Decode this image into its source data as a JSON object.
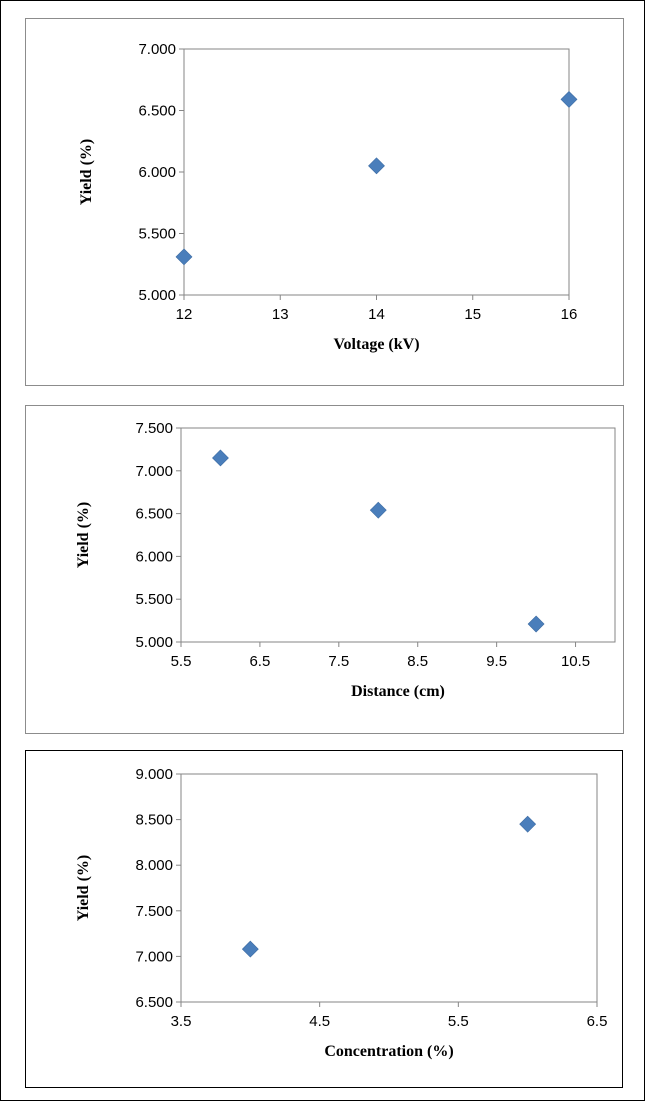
{
  "chart_data": [
    {
      "type": "scatter",
      "title": "",
      "xlabel": "Voltage (kV)",
      "ylabel": "Yield (%)",
      "xlim": [
        12,
        16
      ],
      "ylim": [
        5.0,
        7.0
      ],
      "x_ticks": [
        "12",
        "13",
        "14",
        "15",
        "16"
      ],
      "y_ticks": [
        "5.000",
        "5.500",
        "6.000",
        "6.500",
        "7.000"
      ],
      "grid": false,
      "marker": "diamond",
      "color": "#4a7ebb",
      "points": [
        {
          "x": 12,
          "y": 5.31
        },
        {
          "x": 14,
          "y": 6.05
        },
        {
          "x": 16,
          "y": 6.59
        }
      ]
    },
    {
      "type": "scatter",
      "title": "",
      "xlabel": "Distance (cm)",
      "ylabel": "Yield (%)",
      "xlim": [
        5.5,
        11.0
      ],
      "ylim": [
        5.0,
        7.5
      ],
      "x_ticks": [
        "5.5",
        "6.5",
        "7.5",
        "8.5",
        "9.5",
        "10.5"
      ],
      "y_ticks": [
        "5.000",
        "5.500",
        "6.000",
        "6.500",
        "7.000",
        "7.500"
      ],
      "grid": false,
      "marker": "diamond",
      "color": "#4a7ebb",
      "points": [
        {
          "x": 6,
          "y": 7.15
        },
        {
          "x": 8,
          "y": 6.54
        },
        {
          "x": 10,
          "y": 5.21
        }
      ]
    },
    {
      "type": "scatter",
      "title": "",
      "xlabel": "Concentration (%)",
      "ylabel": "Yield (%)",
      "xlim": [
        3.5,
        6.5
      ],
      "ylim": [
        6.5,
        9.0
      ],
      "x_ticks": [
        "3.5",
        "4.5",
        "5.5",
        "6.5"
      ],
      "y_ticks": [
        "6.500",
        "7.000",
        "7.500",
        "8.000",
        "8.500",
        "9.000"
      ],
      "grid": false,
      "marker": "diamond",
      "color": "#4a7ebb",
      "points": [
        {
          "x": 4,
          "y": 7.08
        },
        {
          "x": 6,
          "y": 8.45
        }
      ]
    }
  ]
}
